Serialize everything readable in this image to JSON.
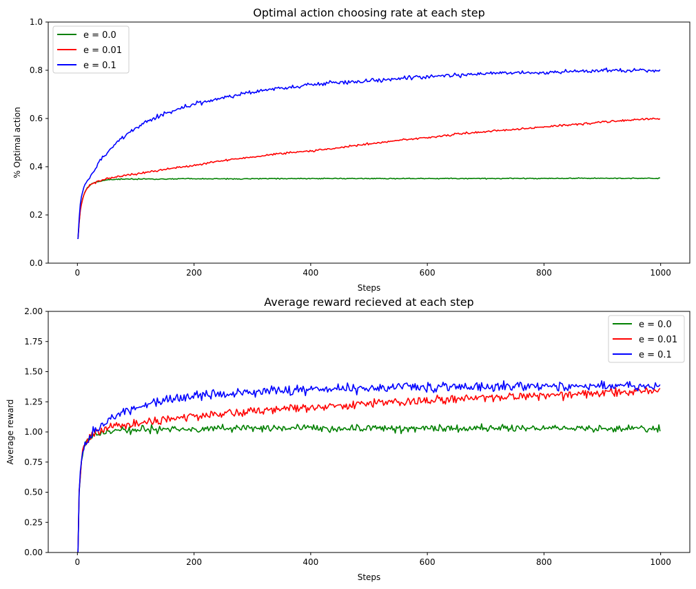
{
  "chart_data": [
    {
      "type": "line",
      "title": "Optimal action choosing rate at each step",
      "xlabel": "Steps",
      "ylabel": "% Optimal action",
      "xlim": [
        -50,
        1050
      ],
      "ylim": [
        0,
        1.0
      ],
      "xticks": [
        0,
        200,
        400,
        600,
        800,
        1000
      ],
      "yticks": [
        0.0,
        0.2,
        0.4,
        0.6,
        0.8,
        1.0
      ],
      "ytick_labels": [
        "0.0",
        "0.2",
        "0.4",
        "0.6",
        "0.8",
        "1.0"
      ],
      "legend_position": "top-left",
      "grid": false,
      "series": [
        {
          "name": "e = 0.0",
          "color": "#008000",
          "noise": 0.0015,
          "x": [
            1,
            3,
            5,
            8,
            12,
            16,
            20,
            25,
            30,
            40,
            50,
            60,
            70,
            80,
            90,
            100,
            150,
            200,
            300,
            400,
            500,
            600,
            700,
            800,
            900,
            1000
          ],
          "y": [
            0.1,
            0.17,
            0.22,
            0.26,
            0.29,
            0.31,
            0.32,
            0.33,
            0.335,
            0.34,
            0.345,
            0.347,
            0.348,
            0.349,
            0.349,
            0.349,
            0.349,
            0.35,
            0.35,
            0.351,
            0.351,
            0.351,
            0.351,
            0.352,
            0.352,
            0.352
          ]
        },
        {
          "name": "e = 0.01",
          "color": "#ff0000",
          "noise": 0.003,
          "x": [
            1,
            3,
            5,
            8,
            12,
            16,
            20,
            25,
            30,
            40,
            50,
            70,
            100,
            150,
            200,
            250,
            300,
            350,
            400,
            450,
            500,
            550,
            600,
            650,
            700,
            750,
            800,
            850,
            900,
            950,
            1000
          ],
          "y": [
            0.1,
            0.17,
            0.22,
            0.26,
            0.29,
            0.31,
            0.32,
            0.33,
            0.335,
            0.34,
            0.35,
            0.36,
            0.37,
            0.39,
            0.405,
            0.425,
            0.44,
            0.455,
            0.465,
            0.48,
            0.495,
            0.51,
            0.52,
            0.535,
            0.545,
            0.555,
            0.565,
            0.575,
            0.585,
            0.595,
            0.6
          ]
        },
        {
          "name": "e = 0.1",
          "color": "#0000ff",
          "noise": 0.006,
          "x": [
            1,
            3,
            5,
            8,
            12,
            16,
            20,
            25,
            30,
            40,
            50,
            60,
            70,
            80,
            100,
            120,
            150,
            200,
            250,
            300,
            350,
            400,
            450,
            500,
            550,
            600,
            650,
            700,
            750,
            800,
            850,
            900,
            950,
            1000
          ],
          "y": [
            0.1,
            0.18,
            0.24,
            0.29,
            0.32,
            0.34,
            0.355,
            0.37,
            0.39,
            0.425,
            0.455,
            0.48,
            0.505,
            0.525,
            0.56,
            0.59,
            0.62,
            0.66,
            0.685,
            0.71,
            0.725,
            0.74,
            0.75,
            0.755,
            0.765,
            0.775,
            0.78,
            0.785,
            0.79,
            0.79,
            0.795,
            0.8,
            0.8,
            0.8
          ]
        }
      ]
    },
    {
      "type": "line",
      "title": "Average reward recieved at each step",
      "xlabel": "Steps",
      "ylabel": "Average reward",
      "xlim": [
        -50,
        1050
      ],
      "ylim": [
        0,
        2.0
      ],
      "xticks": [
        0,
        200,
        400,
        600,
        800,
        1000
      ],
      "yticks": [
        0,
        0.25,
        0.5,
        0.75,
        1.0,
        1.25,
        1.5,
        1.75,
        2.0
      ],
      "ytick_labels": [
        "0.00",
        "0.25",
        "0.50",
        "0.75",
        "1.00",
        "1.25",
        "1.50",
        "1.75",
        "2.00"
      ],
      "legend_position": "top-right",
      "grid": false,
      "series": [
        {
          "name": "e = 0.0",
          "color": "#008000",
          "noise": 0.022,
          "x": [
            1,
            2,
            3,
            5,
            8,
            12,
            16,
            20,
            25,
            30,
            40,
            50,
            70,
            100,
            150,
            200,
            300,
            400,
            500,
            600,
            700,
            800,
            900,
            1000
          ],
          "y": [
            0.0,
            0.3,
            0.5,
            0.65,
            0.8,
            0.88,
            0.93,
            0.95,
            0.97,
            0.98,
            0.99,
            1.0,
            1.01,
            1.02,
            1.02,
            1.02,
            1.03,
            1.03,
            1.03,
            1.03,
            1.03,
            1.03,
            1.03,
            1.03
          ]
        },
        {
          "name": "e = 0.01",
          "color": "#ff0000",
          "noise": 0.025,
          "x": [
            1,
            2,
            3,
            5,
            8,
            12,
            16,
            20,
            25,
            30,
            40,
            50,
            70,
            100,
            150,
            200,
            250,
            300,
            350,
            400,
            450,
            500,
            550,
            600,
            650,
            700,
            750,
            800,
            850,
            900,
            950,
            1000
          ],
          "y": [
            0.0,
            0.3,
            0.5,
            0.65,
            0.8,
            0.88,
            0.93,
            0.95,
            0.97,
            0.99,
            1.0,
            1.02,
            1.04,
            1.07,
            1.1,
            1.13,
            1.15,
            1.17,
            1.19,
            1.21,
            1.22,
            1.24,
            1.25,
            1.26,
            1.27,
            1.28,
            1.29,
            1.3,
            1.31,
            1.32,
            1.33,
            1.34
          ]
        },
        {
          "name": "e = 0.1",
          "color": "#0000ff",
          "noise": 0.028,
          "x": [
            1,
            2,
            3,
            5,
            8,
            12,
            16,
            20,
            25,
            30,
            40,
            50,
            60,
            70,
            80,
            100,
            120,
            150,
            200,
            250,
            300,
            350,
            400,
            450,
            500,
            550,
            600,
            650,
            700,
            750,
            800,
            850,
            900,
            950,
            1000
          ],
          "y": [
            0.0,
            0.3,
            0.5,
            0.65,
            0.8,
            0.88,
            0.93,
            0.96,
            0.99,
            1.01,
            1.05,
            1.08,
            1.11,
            1.14,
            1.17,
            1.2,
            1.23,
            1.27,
            1.3,
            1.32,
            1.33,
            1.34,
            1.35,
            1.355,
            1.36,
            1.365,
            1.37,
            1.37,
            1.375,
            1.38,
            1.38,
            1.38,
            1.385,
            1.385,
            1.39
          ]
        }
      ]
    }
  ]
}
